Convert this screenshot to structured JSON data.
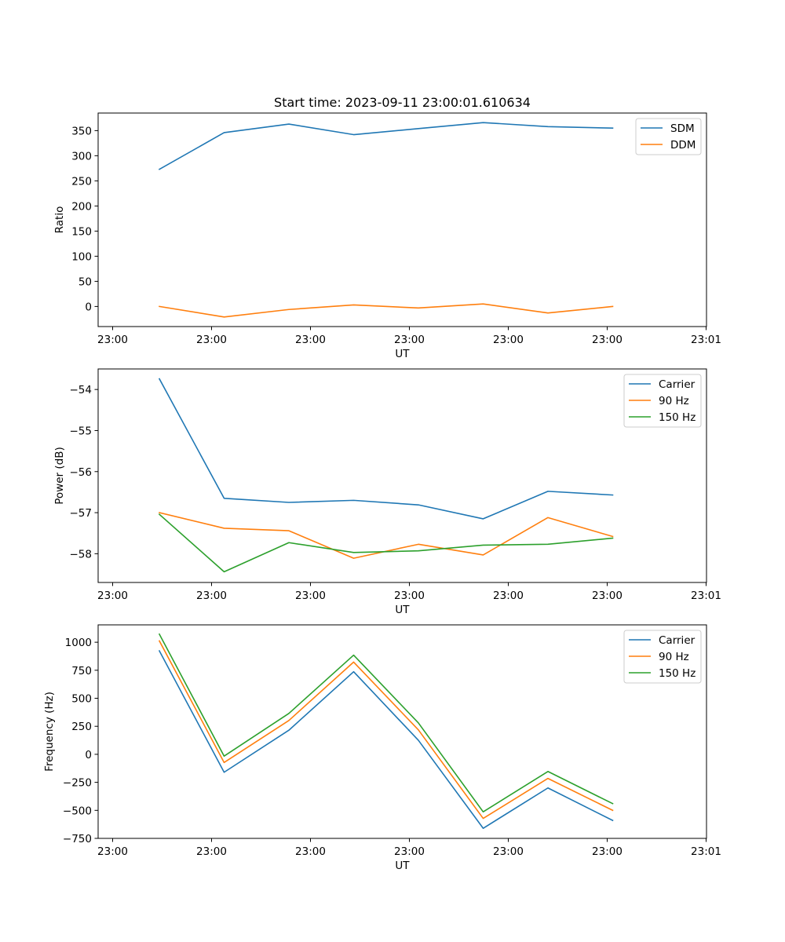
{
  "chart_data": [
    {
      "type": "line",
      "title": "Start time: 2023-09-11 23:00:01.610634",
      "xlabel": "UT",
      "ylabel": "Ratio",
      "xtick_labels": [
        "23:00",
        "23:00",
        "23:00",
        "23:00",
        "23:00",
        "23:00",
        "23:01"
      ],
      "yticks": [
        0,
        50,
        100,
        150,
        200,
        250,
        300,
        350
      ],
      "ylim": [
        -40,
        385
      ],
      "legend_position": "top-right",
      "series": [
        {
          "name": "SDM",
          "color": "#1f77b4",
          "values": [
            273,
            346,
            363,
            342,
            354,
            366,
            358,
            355
          ]
        },
        {
          "name": "DDM",
          "color": "#ff7f0e",
          "values": [
            0,
            -21,
            -6,
            3,
            -3,
            5,
            -13,
            0
          ]
        }
      ]
    },
    {
      "type": "line",
      "title": "",
      "xlabel": "UT",
      "ylabel": "Power (dB)",
      "xtick_labels": [
        "23:00",
        "23:00",
        "23:00",
        "23:00",
        "23:00",
        "23:00",
        "23:01"
      ],
      "yticks": [
        -58,
        -57,
        -56,
        -55,
        -54
      ],
      "ytick_labels": [
        "−58",
        "−57",
        "−56",
        "−55",
        "−54"
      ],
      "ylim": [
        -58.7,
        -53.5
      ],
      "legend_position": "top-right",
      "series": [
        {
          "name": "Carrier",
          "color": "#1f77b4",
          "values": [
            -53.74,
            -56.65,
            -56.75,
            -56.7,
            -56.81,
            -57.15,
            -56.48,
            -56.57
          ]
        },
        {
          "name": "90 Hz",
          "color": "#ff7f0e",
          "values": [
            -57.0,
            -57.38,
            -57.44,
            -58.11,
            -57.77,
            -58.03,
            -57.12,
            -57.58
          ]
        },
        {
          "name": "150 Hz",
          "color": "#2ca02c",
          "values": [
            -57.04,
            -58.44,
            -57.73,
            -57.97,
            -57.93,
            -57.79,
            -57.77,
            -57.62
          ]
        }
      ]
    },
    {
      "type": "line",
      "title": "",
      "xlabel": "UT",
      "ylabel": "Frequency (Hz)",
      "xtick_labels": [
        "23:00",
        "23:00",
        "23:00",
        "23:00",
        "23:00",
        "23:00",
        "23:01"
      ],
      "yticks": [
        -750,
        -500,
        -250,
        0,
        250,
        500,
        750,
        1000
      ],
      "ytick_labels": [
        "−750",
        "−500",
        "−250",
        "0",
        "250",
        "500",
        "750",
        "1000"
      ],
      "ylim": [
        -750,
        1155
      ],
      "legend_position": "top-right",
      "series": [
        {
          "name": "Carrier",
          "color": "#1f77b4",
          "values": [
            923,
            -160,
            215,
            737,
            125,
            -660,
            -300,
            -590
          ]
        },
        {
          "name": "90 Hz",
          "color": "#ff7f0e",
          "values": [
            1012,
            -73,
            302,
            823,
            218,
            -572,
            -215,
            -500
          ]
        },
        {
          "name": "150 Hz",
          "color": "#2ca02c",
          "values": [
            1072,
            -16,
            365,
            885,
            280,
            -513,
            -153,
            -440
          ]
        }
      ]
    }
  ]
}
